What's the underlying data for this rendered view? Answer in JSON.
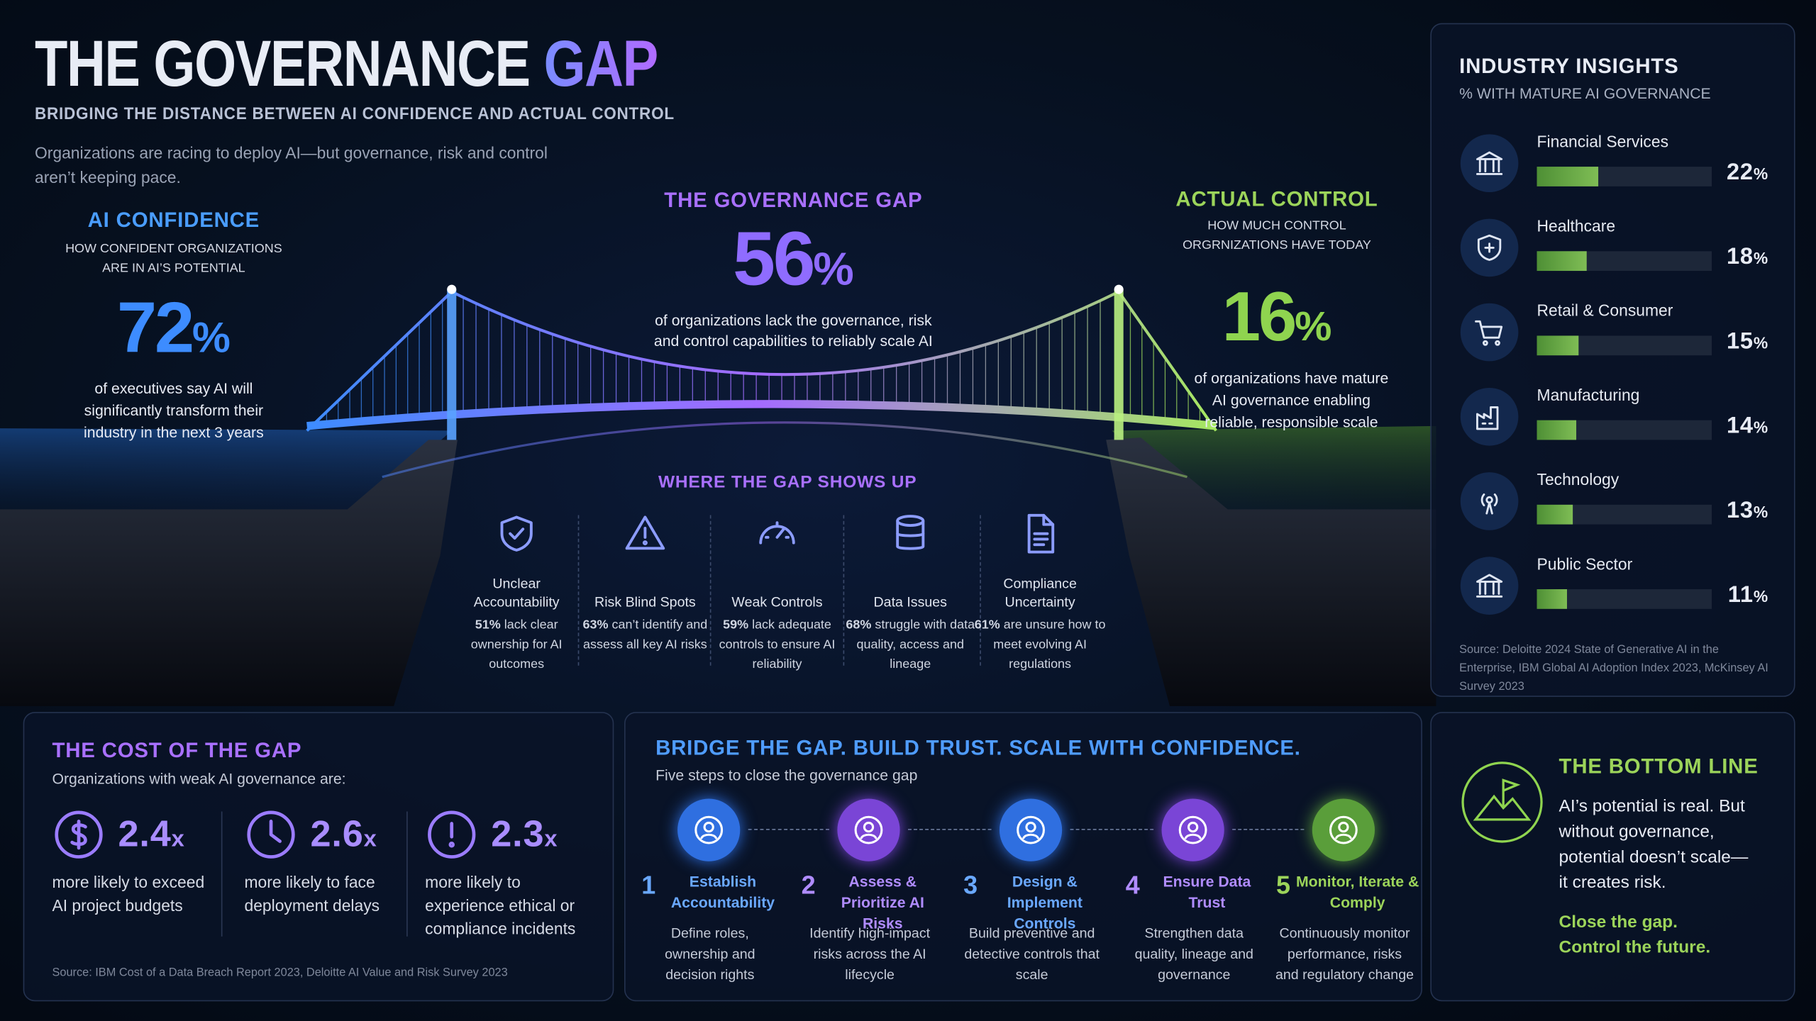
{
  "header": {
    "title_main": "THE GOVERNANCE",
    "title_accent": "GAP",
    "subtitle": "BRIDGING THE DISTANCE BETWEEN AI CONFIDENCE AND ACTUAL CONTROL",
    "intro": "Organizations are racing to deploy AI—but governance, risk and control aren’t keeping pace."
  },
  "confidence": {
    "title": "AI CONFIDENCE",
    "subtitle": "HOW CONFIDENT ORGANIZATIONS ARE IN AI’S POTENTIAL",
    "number": "72",
    "unit": "%",
    "text": "of executives say AI will significantly transform their industry in the next 3 years"
  },
  "gap": {
    "title": "THE GOVERNANCE GAP",
    "number": "56",
    "unit": "%",
    "text": "of organizations lack the governance, risk and control capabilities to reliably scale AI"
  },
  "control": {
    "title": "ACTUAL CONTROL",
    "subtitle": "HOW MUCH CONTROL ORGRNIZATIONS HAVE TODAY",
    "number": "16",
    "unit": "%",
    "text": "of organizations have mature AI governance enabling reliable, responsible scale"
  },
  "shows_up": {
    "title": "WHERE THE GAP SHOWS UP",
    "items": [
      {
        "label": "Unclear Accountability",
        "stat": "51%",
        "text": "lack clear ownership for AI outcomes"
      },
      {
        "label": "Risk Blind Spots",
        "stat": "63%",
        "text": "can’t identify and assess all key AI risks"
      },
      {
        "label": "Weak Controls",
        "stat": "59%",
        "text": "lack adequate controls to ensure AI reliability"
      },
      {
        "label": "Data Issues",
        "stat": "68%",
        "text": "struggle with data quality, access and lineage"
      },
      {
        "label": "Compliance Uncertainty",
        "stat": "61%",
        "text": "are unsure how to meet evolving AI regulations"
      }
    ]
  },
  "industry": {
    "title": "INDUSTRY INSIGHTS",
    "subtitle": "% WITH MATURE AI GOVERNANCE",
    "items": [
      {
        "name": "Financial Services",
        "value": 22,
        "unit": "%"
      },
      {
        "name": "Healthcare",
        "value": 18,
        "unit": "%"
      },
      {
        "name": "Retail & Consumer",
        "value": 15,
        "unit": "%"
      },
      {
        "name": "Manufacturing",
        "value": 14,
        "unit": "%"
      },
      {
        "name": "Technology",
        "value": 13,
        "unit": "%"
      },
      {
        "name": "Public Sector",
        "value": 11,
        "unit": "%"
      }
    ],
    "source": "Source: Deloitte 2024 State of Generative AI in the Enterprise, IBM Global AI Adoption Index 2023, McKinsey AI Survey 2023"
  },
  "cost": {
    "title": "THE COST OF THE GAP",
    "subtitle": "Organizations with weak AI governance are:",
    "items": [
      {
        "number": "2.4",
        "unit": "x",
        "text": "more likely to exceed AI project budgets"
      },
      {
        "number": "2.6",
        "unit": "x",
        "text": "more likely to face deployment delays"
      },
      {
        "number": "2.3",
        "unit": "x",
        "text": "more likely to experience ethical or compliance incidents"
      }
    ],
    "source": "Source: IBM Cost of a Data Breach Report 2023, Deloitte AI Value and Risk Survey 2023"
  },
  "steps": {
    "title": "BRIDGE THE GAP. BUILD TRUST. SCALE WITH CONFIDENCE.",
    "subtitle": "Five steps to close the governance gap",
    "items": [
      {
        "number": "1",
        "title": "Establish Accountability",
        "text": "Define roles, ownership and decision rights"
      },
      {
        "number": "2",
        "title": "Assess & Prioritize AI Risks",
        "text": "Identify high-impact risks across the AI lifecycle"
      },
      {
        "number": "3",
        "title": "Design & Implement Controls",
        "text": "Build preventive and detective controls that scale"
      },
      {
        "number": "4",
        "title": "Ensure Data Trust",
        "text": "Strengthen data quality, lineage and governance"
      },
      {
        "number": "5",
        "title": "Monitor, Iterate & Comply",
        "text": "Continuously monitor performance, risks and regulatory change"
      }
    ]
  },
  "bottom": {
    "title": "THE BOTTOM LINE",
    "text": "AI’s potential is real. But without governance, potential doesn’t scale—it creates risk.",
    "cta": "Close the gap. Control the future."
  }
}
